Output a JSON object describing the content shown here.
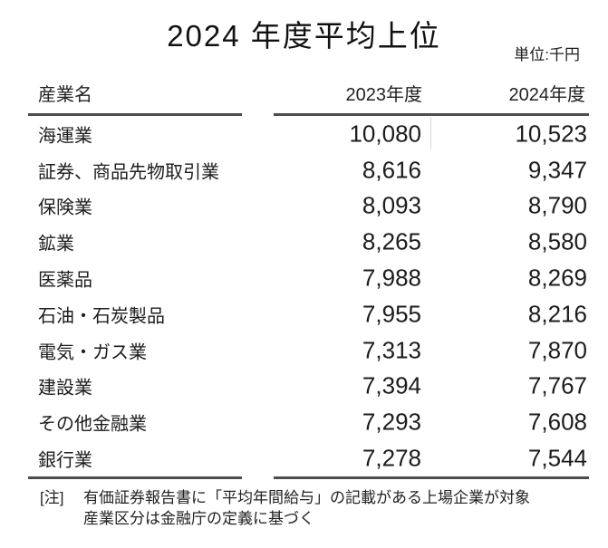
{
  "title": "2024 年度平均上位",
  "unit_label": "単位:千円",
  "table": {
    "headers": {
      "industry": "産業名",
      "fy2023": "2023年度",
      "fy2024": "2024年度"
    },
    "rows": [
      {
        "industry": "海運業",
        "fy2023": "10,080",
        "fy2024": "10,523"
      },
      {
        "industry": "証券、商品先物取引業",
        "fy2023": "8,616",
        "fy2024": "9,347"
      },
      {
        "industry": "保険業",
        "fy2023": "8,093",
        "fy2024": "8,790"
      },
      {
        "industry": "鉱業",
        "fy2023": "8,265",
        "fy2024": "8,580"
      },
      {
        "industry": "医薬品",
        "fy2023": "7,988",
        "fy2024": "8,269"
      },
      {
        "industry": "石油・石炭製品",
        "fy2023": "7,955",
        "fy2024": "8,216"
      },
      {
        "industry": "電気・ガス業",
        "fy2023": "7,313",
        "fy2024": "7,870"
      },
      {
        "industry": "建設業",
        "fy2023": "7,394",
        "fy2024": "7,767"
      },
      {
        "industry": "その他金融業",
        "fy2023": "7,293",
        "fy2024": "7,608"
      },
      {
        "industry": "銀行業",
        "fy2023": "7,278",
        "fy2024": "7,544"
      }
    ]
  },
  "note": {
    "tag": "[注]",
    "line1": "有価証券報告書に「平均年間給与」の記載がある上場企業が対象",
    "line2": "産業区分は金融庁の定義に基づく"
  },
  "colors": {
    "background": "#ffffff",
    "text": "#1c1c1c",
    "rule": "#4d4d4d",
    "column_divider": "#d9d9d9"
  },
  "chart_data": {
    "type": "table",
    "title": "2024 年度平均上位",
    "unit": "千円",
    "categories": [
      "海運業",
      "証券、商品先物取引業",
      "保険業",
      "鉱業",
      "医薬品",
      "石油・石炭製品",
      "電気・ガス業",
      "建設業",
      "その他金融業",
      "銀行業"
    ],
    "series": [
      {
        "name": "2023年度",
        "values": [
          10080,
          8616,
          8093,
          8265,
          7988,
          7955,
          7313,
          7394,
          7293,
          7278
        ]
      },
      {
        "name": "2024年度",
        "values": [
          10523,
          9347,
          8790,
          8580,
          8269,
          8216,
          7870,
          7767,
          7608,
          7544
        ]
      }
    ],
    "notes": [
      "有価証券報告書に「平均年間給与」の記載がある上場企業が対象",
      "産業区分は金融庁の定義に基づく"
    ]
  }
}
